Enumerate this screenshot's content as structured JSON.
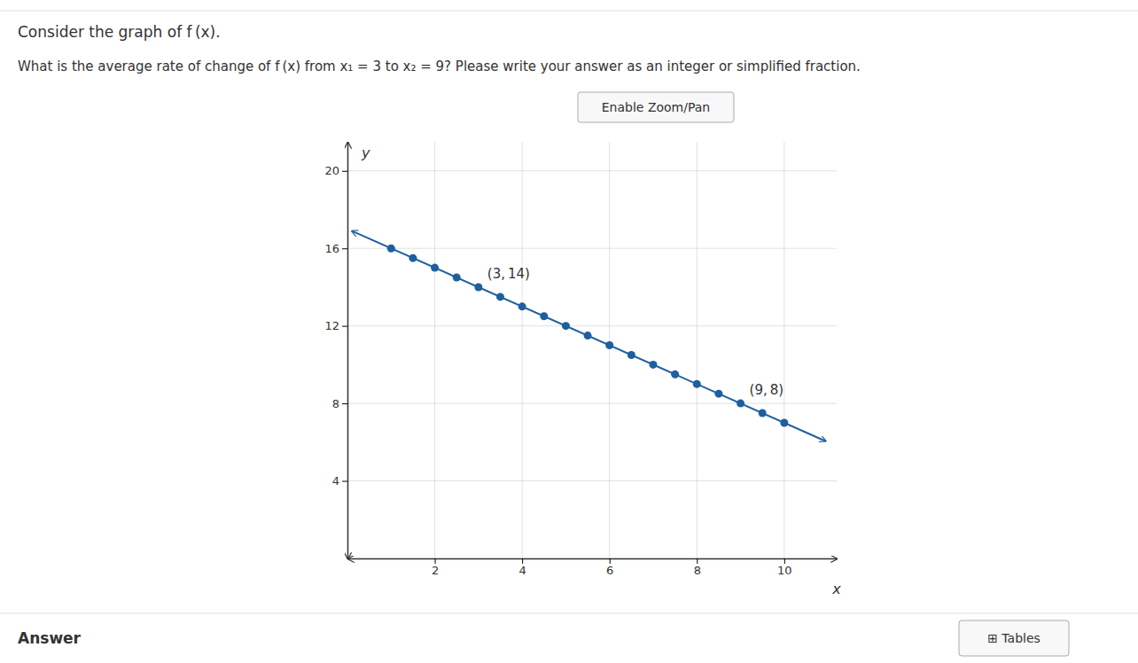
{
  "chart_data": {
    "type": "line",
    "title": "Consider the graph of f (x).",
    "subtitle": "What is the average rate of change of f (x) from x₁ = 3 to x₂ = 9? Please write your answer as an integer or simplified fraction.",
    "x_label": "x",
    "y_label": "y",
    "xlim": [
      0,
      11.2
    ],
    "ylim": [
      0,
      21.5
    ],
    "xticks": [
      2,
      4,
      6,
      8,
      10
    ],
    "yticks": [
      4,
      8,
      12,
      16,
      20
    ],
    "grid": true,
    "series": [
      {
        "type": "line",
        "marker": "arrow",
        "color": "#2060a0",
        "x": [
          0.1,
          0.3,
          10.8,
          10.95
        ],
        "values": [
          16.9,
          16.7,
          6.2,
          6.05
        ]
      },
      {
        "type": "scatter",
        "marker": "circle",
        "color": "#1e5f9e",
        "x": [
          1.0,
          1.5,
          2.0,
          2.5,
          3.0,
          3.5,
          4.0,
          4.5,
          5.0,
          5.5,
          6.0,
          6.5,
          7.0,
          7.5,
          8.0,
          8.5,
          9.0,
          9.5,
          10.0
        ],
        "values": [
          16.0,
          15.5,
          15.0,
          14.5,
          14.0,
          13.5,
          13.0,
          12.5,
          12.0,
          11.5,
          11.0,
          10.5,
          10.0,
          9.5,
          9.0,
          8.5,
          8.0,
          7.5,
          7.0
        ]
      }
    ],
    "annotations": [
      {
        "text": "(3, 14)",
        "x": 3,
        "y": 14
      },
      {
        "text": "(9, 8)",
        "x": 9,
        "y": 8
      }
    ],
    "buttons": [
      "Enable Zoom/Pan",
      "⊞ Tables"
    ],
    "footer_text": "Answer"
  }
}
